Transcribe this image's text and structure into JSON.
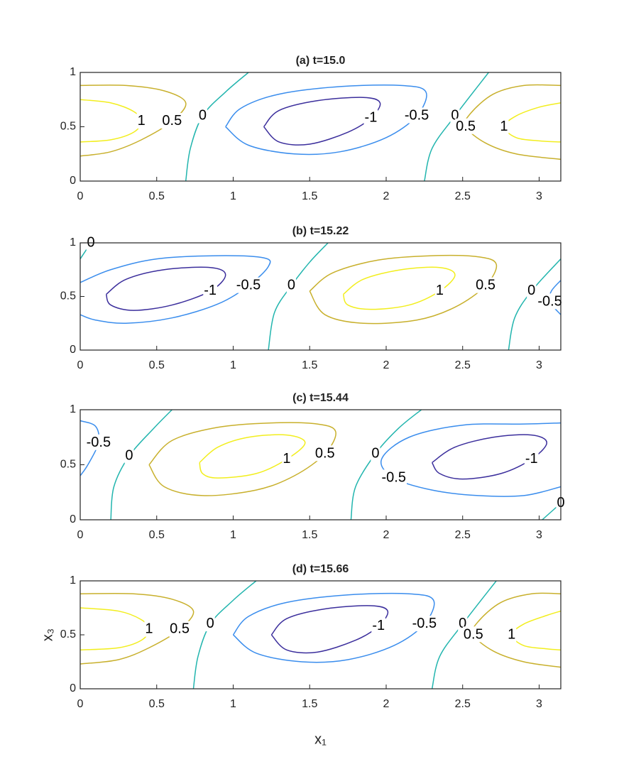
{
  "chart_data": [
    {
      "type": "contour",
      "title": "(a) t=15.0",
      "xlim": [
        0,
        3.1416
      ],
      "ylim": [
        0,
        1
      ],
      "xticks": [
        0,
        0.5,
        1,
        1.5,
        2,
        2.5,
        3
      ],
      "yticks": [
        0,
        0.5,
        1
      ],
      "contours": [
        {
          "level": 1,
          "color": "#f2ee1e",
          "x": [
            0,
            0.2,
            0.35,
            0.4,
            0.35,
            0.2,
            0
          ],
          "y": [
            0.75,
            0.72,
            0.64,
            0.55,
            0.45,
            0.38,
            0.36
          ]
        },
        {
          "level": 0.5,
          "color": "#c8b02c",
          "x": [
            0,
            0.3,
            0.55,
            0.69,
            0.6,
            0.4,
            0.2,
            0
          ],
          "y": [
            0.88,
            0.88,
            0.83,
            0.72,
            0.55,
            0.38,
            0.27,
            0.23
          ]
        },
        {
          "level": 0,
          "color": "#22b5ae",
          "x": [
            0.69,
            0.72,
            0.8,
            0.95,
            1.1
          ],
          "y": [
            0,
            0.3,
            0.6,
            0.82,
            1
          ]
        },
        {
          "level": -0.5,
          "color": "#3a8ded",
          "x": [
            0.95,
            1.05,
            1.3,
            1.7,
            2.1,
            2.26,
            2.2,
            2.0,
            1.7,
            1.4,
            1.1,
            0.95
          ],
          "y": [
            0.5,
            0.67,
            0.8,
            0.87,
            0.88,
            0.82,
            0.6,
            0.4,
            0.27,
            0.25,
            0.33,
            0.5
          ]
        },
        {
          "level": -1,
          "color": "#3b2e9c",
          "x": [
            1.2,
            1.3,
            1.55,
            1.85,
            1.96,
            1.9,
            1.75,
            1.5,
            1.3,
            1.2
          ],
          "y": [
            0.5,
            0.65,
            0.74,
            0.77,
            0.72,
            0.58,
            0.45,
            0.34,
            0.36,
            0.5
          ]
        },
        {
          "level": 0,
          "color": "#22b5ae",
          "x": [
            2.25,
            2.3,
            2.45,
            2.67
          ],
          "y": [
            0,
            0.3,
            0.6,
            1
          ]
        },
        {
          "level": 0.5,
          "color": "#c8b02c",
          "x": [
            3.1416,
            2.9,
            2.7,
            2.55,
            2.52,
            2.65,
            2.85,
            3.1416
          ],
          "y": [
            0.88,
            0.88,
            0.8,
            0.62,
            0.5,
            0.35,
            0.25,
            0.2
          ]
        },
        {
          "level": 1,
          "color": "#f2ee1e",
          "x": [
            3.1416,
            3.0,
            2.85,
            2.77,
            2.85,
            3.0,
            3.1416
          ],
          "y": [
            0.72,
            0.68,
            0.6,
            0.5,
            0.4,
            0.37,
            0.36
          ]
        }
      ]
    },
    {
      "type": "contour",
      "title": "(b) t=15.22",
      "xlim": [
        0,
        3.1416
      ],
      "ylim": [
        0,
        1
      ],
      "xticks": [
        0,
        0.5,
        1,
        1.5,
        2,
        2.5,
        3
      ],
      "yticks": [
        0,
        0.5,
        1
      ],
      "contours": [
        {
          "level": 0,
          "color": "#22b5ae",
          "x": [
            0,
            0.07
          ],
          "y": [
            0.85,
            1
          ]
        },
        {
          "level": -0.5,
          "color": "#3a8ded",
          "x": [
            0,
            0.2,
            0.5,
            0.9,
            1.2,
            1.23,
            1.1,
            0.9,
            0.6,
            0.3,
            0.1,
            0
          ],
          "y": [
            0.63,
            0.75,
            0.85,
            0.88,
            0.86,
            0.78,
            0.6,
            0.43,
            0.3,
            0.25,
            0.28,
            0.33
          ]
        },
        {
          "level": -1,
          "color": "#3b2e9c",
          "x": [
            0.17,
            0.3,
            0.55,
            0.85,
            0.95,
            0.85,
            0.6,
            0.35,
            0.2,
            0.17
          ],
          "y": [
            0.52,
            0.66,
            0.75,
            0.77,
            0.7,
            0.55,
            0.42,
            0.37,
            0.42,
            0.52
          ]
        },
        {
          "level": 0,
          "color": "#22b5ae",
          "x": [
            1.23,
            1.27,
            1.38,
            1.5,
            1.62
          ],
          "y": [
            0,
            0.35,
            0.6,
            0.82,
            1
          ]
        },
        {
          "level": 0.5,
          "color": "#c8b02c",
          "x": [
            1.5,
            1.65,
            1.95,
            2.3,
            2.6,
            2.72,
            2.65,
            2.45,
            2.2,
            1.85,
            1.6,
            1.5
          ],
          "y": [
            0.55,
            0.72,
            0.84,
            0.88,
            0.87,
            0.8,
            0.6,
            0.4,
            0.28,
            0.25,
            0.33,
            0.55
          ]
        },
        {
          "level": 1,
          "color": "#f2ee1e",
          "x": [
            1.72,
            1.85,
            2.1,
            2.35,
            2.45,
            2.35,
            2.15,
            1.9,
            1.75,
            1.72
          ],
          "y": [
            0.52,
            0.66,
            0.75,
            0.77,
            0.7,
            0.55,
            0.42,
            0.38,
            0.42,
            0.52
          ]
        },
        {
          "level": 0,
          "color": "#22b5ae",
          "x": [
            2.8,
            2.84,
            2.95,
            3.1416
          ],
          "y": [
            0,
            0.3,
            0.55,
            0.85
          ]
        },
        {
          "level": -0.5,
          "color": "#3a8ded",
          "x": [
            3.1416,
            3.08,
            3.07,
            3.1416
          ],
          "y": [
            0.65,
            0.55,
            0.45,
            0.33
          ]
        }
      ]
    },
    {
      "type": "contour",
      "title": "(c) t=15.44",
      "xlim": [
        0,
        3.1416
      ],
      "ylim": [
        0,
        1
      ],
      "xticks": [
        0,
        0.5,
        1,
        1.5,
        2,
        2.5,
        3
      ],
      "yticks": [
        0,
        0.5,
        1
      ],
      "contours": [
        {
          "level": -0.5,
          "color": "#3a8ded",
          "x": [
            0,
            0.1,
            0.12,
            0.05,
            0
          ],
          "y": [
            0.9,
            0.85,
            0.7,
            0.5,
            0.4
          ]
        },
        {
          "level": 0,
          "color": "#22b5ae",
          "x": [
            0.2,
            0.22,
            0.32,
            0.48,
            0.6
          ],
          "y": [
            0,
            0.3,
            0.58,
            0.83,
            1
          ]
        },
        {
          "level": 0.5,
          "color": "#c8b02c",
          "x": [
            0.45,
            0.6,
            0.9,
            1.25,
            1.55,
            1.67,
            1.6,
            1.4,
            1.15,
            0.8,
            0.55,
            0.45
          ],
          "y": [
            0.5,
            0.72,
            0.84,
            0.88,
            0.87,
            0.8,
            0.6,
            0.4,
            0.27,
            0.22,
            0.3,
            0.5
          ]
        },
        {
          "level": 1,
          "color": "#f2ee1e",
          "x": [
            0.78,
            0.9,
            1.1,
            1.35,
            1.47,
            1.35,
            1.15,
            0.9,
            0.8,
            0.78
          ],
          "y": [
            0.52,
            0.66,
            0.75,
            0.77,
            0.7,
            0.55,
            0.42,
            0.38,
            0.42,
            0.52
          ]
        },
        {
          "level": 0,
          "color": "#22b5ae",
          "x": [
            1.77,
            1.8,
            1.93,
            2.08,
            2.23
          ],
          "y": [
            0,
            0.3,
            0.6,
            0.83,
            1
          ]
        },
        {
          "level": -0.5,
          "color": "#3a8ded",
          "x": [
            3.1416,
            2.9,
            2.5,
            2.15,
            1.97,
            2.05,
            2.3,
            2.6,
            2.9,
            3.1416
          ],
          "y": [
            0.88,
            0.87,
            0.86,
            0.75,
            0.55,
            0.38,
            0.27,
            0.22,
            0.22,
            0.3
          ]
        },
        {
          "level": -1,
          "color": "#3b2e9c",
          "x": [
            2.3,
            2.45,
            2.7,
            2.95,
            3.05,
            2.95,
            2.75,
            2.5,
            2.35,
            2.3
          ],
          "y": [
            0.52,
            0.66,
            0.75,
            0.77,
            0.7,
            0.55,
            0.42,
            0.37,
            0.42,
            0.52
          ]
        },
        {
          "level": 0,
          "color": "#22b5ae",
          "x": [
            3.02,
            3.1416
          ],
          "y": [
            0,
            0.15
          ]
        }
      ]
    },
    {
      "type": "contour",
      "title": "(d) t=15.66",
      "xlim": [
        0,
        3.1416
      ],
      "ylim": [
        0,
        1
      ],
      "xticks": [
        0,
        0.5,
        1,
        1.5,
        2,
        2.5,
        3
      ],
      "yticks": [
        0,
        0.5,
        1
      ],
      "xlabel": "x₁",
      "ylabel": "x₃",
      "contours": [
        {
          "level": 1,
          "color": "#f2ee1e",
          "x": [
            0,
            0.25,
            0.4,
            0.45,
            0.4,
            0.25,
            0
          ],
          "y": [
            0.75,
            0.72,
            0.64,
            0.55,
            0.45,
            0.38,
            0.36
          ]
        },
        {
          "level": 0.5,
          "color": "#c8b02c",
          "x": [
            0,
            0.35,
            0.6,
            0.74,
            0.65,
            0.45,
            0.25,
            0
          ],
          "y": [
            0.88,
            0.88,
            0.83,
            0.72,
            0.55,
            0.38,
            0.27,
            0.23
          ]
        },
        {
          "level": 0,
          "color": "#22b5ae",
          "x": [
            0.74,
            0.77,
            0.85,
            1.0,
            1.15
          ],
          "y": [
            0,
            0.3,
            0.6,
            0.82,
            1
          ]
        },
        {
          "level": -0.5,
          "color": "#3a8ded",
          "x": [
            1.0,
            1.1,
            1.35,
            1.75,
            2.15,
            2.31,
            2.25,
            2.05,
            1.75,
            1.45,
            1.15,
            1.0
          ],
          "y": [
            0.5,
            0.67,
            0.8,
            0.87,
            0.88,
            0.82,
            0.6,
            0.4,
            0.27,
            0.25,
            0.33,
            0.5
          ]
        },
        {
          "level": -1,
          "color": "#3b2e9c",
          "x": [
            1.25,
            1.35,
            1.6,
            1.9,
            2.01,
            1.95,
            1.8,
            1.55,
            1.35,
            1.25
          ],
          "y": [
            0.5,
            0.65,
            0.74,
            0.77,
            0.72,
            0.58,
            0.45,
            0.34,
            0.36,
            0.5
          ]
        },
        {
          "level": 0,
          "color": "#22b5ae",
          "x": [
            2.3,
            2.35,
            2.5,
            2.72
          ],
          "y": [
            0,
            0.3,
            0.6,
            1
          ]
        },
        {
          "level": 0.5,
          "color": "#c8b02c",
          "x": [
            3.1416,
            2.95,
            2.75,
            2.6,
            2.57,
            2.7,
            2.9,
            3.1416
          ],
          "y": [
            0.88,
            0.88,
            0.8,
            0.62,
            0.5,
            0.35,
            0.25,
            0.2
          ]
        },
        {
          "level": 1,
          "color": "#f2ee1e",
          "x": [
            3.1416,
            3.05,
            2.9,
            2.82,
            2.9,
            3.05,
            3.1416
          ],
          "y": [
            0.72,
            0.68,
            0.6,
            0.5,
            0.4,
            0.37,
            0.36
          ]
        }
      ]
    }
  ]
}
